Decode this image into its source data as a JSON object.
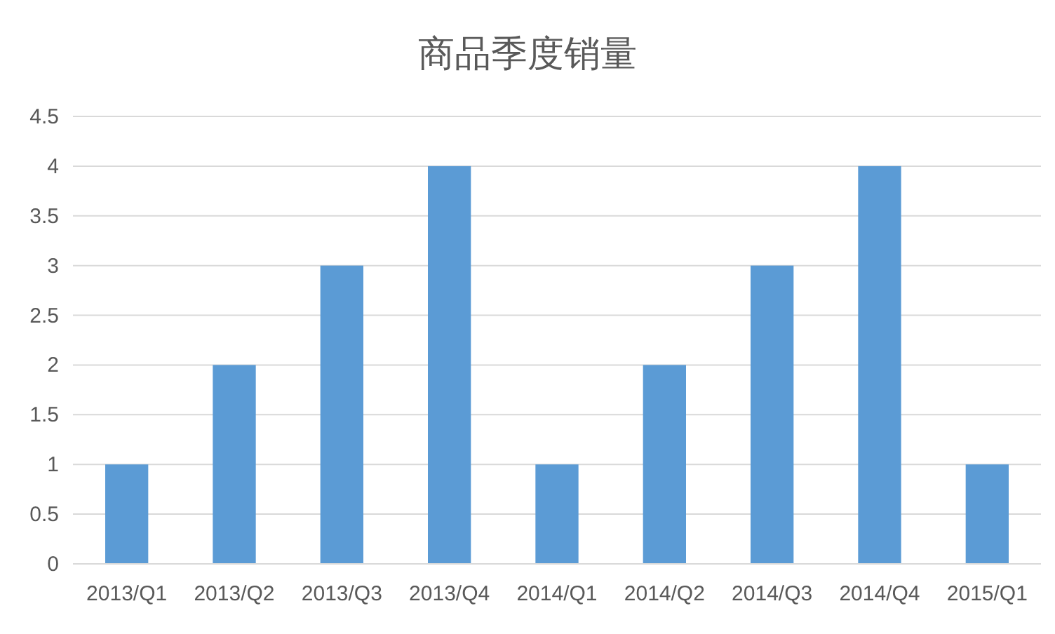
{
  "chart_data": {
    "type": "bar",
    "title": "商品季度销量",
    "categories": [
      "2013/Q1",
      "2013/Q2",
      "2013/Q3",
      "2013/Q4",
      "2014/Q1",
      "2014/Q2",
      "2014/Q3",
      "2014/Q4",
      "2015/Q1"
    ],
    "values": [
      1,
      2,
      3,
      4,
      1,
      2,
      3,
      4,
      1
    ],
    "color": "#5b9bd5",
    "ylim": [
      0,
      4.5
    ],
    "yticks": [
      0,
      0.5,
      1,
      1.5,
      2,
      2.5,
      3,
      3.5,
      4,
      4.5
    ],
    "grid": "y"
  }
}
